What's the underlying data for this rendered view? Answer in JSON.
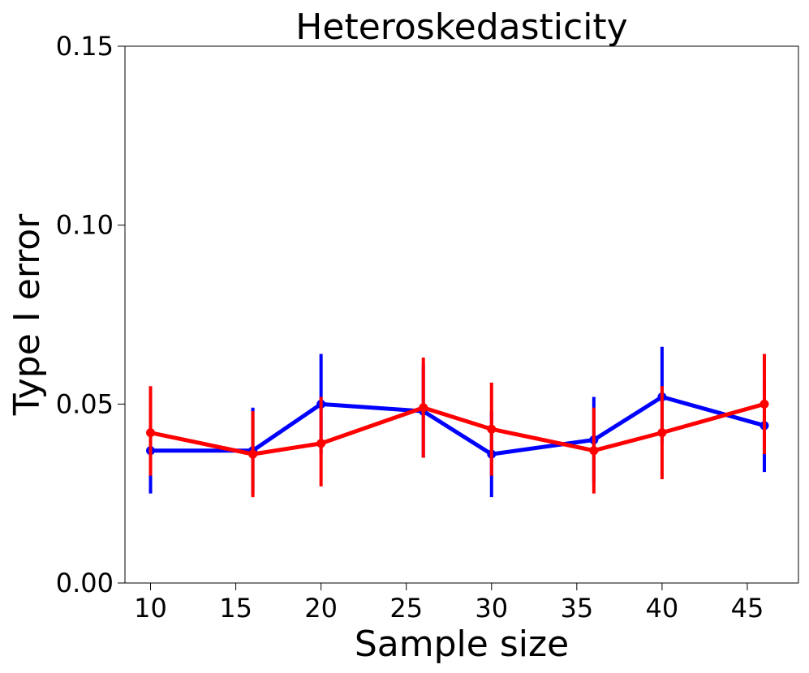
{
  "chart_data": {
    "type": "line",
    "title": "Heteroskedasticity",
    "xlabel": "Sample size",
    "ylabel": "Type I error",
    "xlim": [
      8.5,
      48.0
    ],
    "ylim": [
      0.0,
      0.15
    ],
    "xticks": [
      10,
      15,
      20,
      25,
      30,
      35,
      40,
      45
    ],
    "xtick_labels": [
      "10",
      "15",
      "20",
      "25",
      "30",
      "35",
      "40",
      "45"
    ],
    "yticks": [
      0.0,
      0.05,
      0.1,
      0.15
    ],
    "ytick_labels": [
      "0.00",
      "0.05",
      "0.10",
      "0.15"
    ],
    "grid": false,
    "error_bars": true,
    "series": [
      {
        "name": "blue",
        "color": "#0000ff",
        "x": [
          10,
          16,
          20,
          26,
          30,
          36,
          40,
          46
        ],
        "y": [
          0.037,
          0.037,
          0.05,
          0.048,
          0.036,
          0.04,
          0.052,
          0.044
        ],
        "yerr_low": [
          0.025,
          0.025,
          0.036,
          0.035,
          0.024,
          0.028,
          0.039,
          0.031
        ],
        "yerr_high": [
          0.049,
          0.049,
          0.064,
          0.061,
          0.048,
          0.052,
          0.066,
          0.057
        ]
      },
      {
        "name": "red",
        "color": "#ff0000",
        "x": [
          10,
          16,
          20,
          26,
          30,
          36,
          40,
          46
        ],
        "y": [
          0.042,
          0.036,
          0.039,
          0.049,
          0.043,
          0.037,
          0.042,
          0.05
        ],
        "yerr_low": [
          0.03,
          0.024,
          0.027,
          0.035,
          0.03,
          0.025,
          0.029,
          0.036
        ],
        "yerr_high": [
          0.055,
          0.048,
          0.052,
          0.063,
          0.056,
          0.049,
          0.055,
          0.064
        ]
      }
    ]
  }
}
